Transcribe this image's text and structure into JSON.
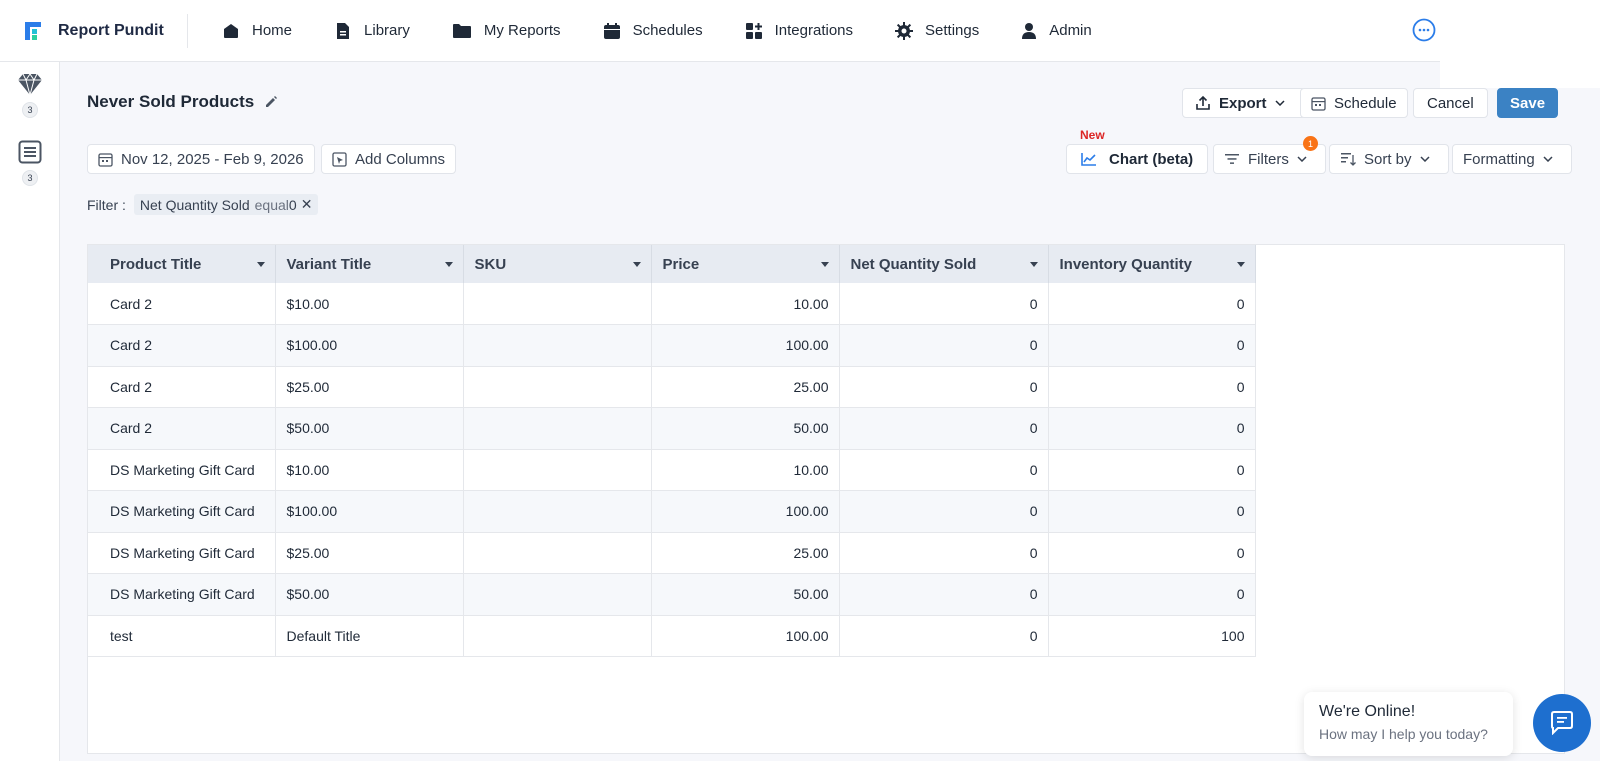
{
  "brand": {
    "name": "Report Pundit"
  },
  "nav": [
    {
      "label": "Home",
      "icon": "home-icon"
    },
    {
      "label": "Library",
      "icon": "library-icon"
    },
    {
      "label": "My Reports",
      "icon": "folder-icon"
    },
    {
      "label": "Schedules",
      "icon": "calendar-icon"
    },
    {
      "label": "Integrations",
      "icon": "integrations-icon"
    },
    {
      "label": "Settings",
      "icon": "gear-icon"
    },
    {
      "label": "Admin",
      "icon": "user-icon"
    }
  ],
  "rail": [
    {
      "icon": "diamond-icon",
      "count": "3"
    },
    {
      "icon": "list-icon",
      "count": "3"
    }
  ],
  "report": {
    "title": "Never Sold Products",
    "date_range": "Nov 12, 2025 - Feb 9, 2026",
    "add_columns": "Add Columns",
    "new_tag": "New",
    "chart_btn": "Chart (beta)",
    "filters_btn": "Filters",
    "filters_count": "1",
    "sort_btn": "Sort by",
    "formatting_btn": "Formatting",
    "export_btn": "Export",
    "schedule_btn": "Schedule",
    "cancel_btn": "Cancel",
    "save_btn": "Save"
  },
  "filter": {
    "label": "Filter :",
    "field": "Net Quantity Sold",
    "op": "equal",
    "value": "0",
    "close": "✕"
  },
  "table": {
    "columns": [
      "Product Title",
      "Variant Title",
      "SKU",
      "Price",
      "Net Quantity Sold",
      "Inventory Quantity"
    ],
    "rows": [
      [
        "Card 2",
        "$10.00",
        "",
        "10.00",
        "0",
        "0"
      ],
      [
        "Card 2",
        "$100.00",
        "",
        "100.00",
        "0",
        "0"
      ],
      [
        "Card 2",
        "$25.00",
        "",
        "25.00",
        "0",
        "0"
      ],
      [
        "Card 2",
        "$50.00",
        "",
        "50.00",
        "0",
        "0"
      ],
      [
        "DS Marketing Gift Card",
        "$10.00",
        "",
        "10.00",
        "0",
        "0"
      ],
      [
        "DS Marketing Gift Card",
        "$100.00",
        "",
        "100.00",
        "0",
        "0"
      ],
      [
        "DS Marketing Gift Card",
        "$25.00",
        "",
        "25.00",
        "0",
        "0"
      ],
      [
        "DS Marketing Gift Card",
        "$50.00",
        "",
        "50.00",
        "0",
        "0"
      ],
      [
        "test",
        "Default Title",
        "",
        "100.00",
        "0",
        "100"
      ]
    ]
  },
  "chat": {
    "title": "We're Online!",
    "subtitle": "How may I help you today?"
  },
  "colors": {
    "accent": "#3b82c4",
    "chat": "#1e6fcf",
    "badge": "#f97316",
    "new": "#dc2626"
  }
}
